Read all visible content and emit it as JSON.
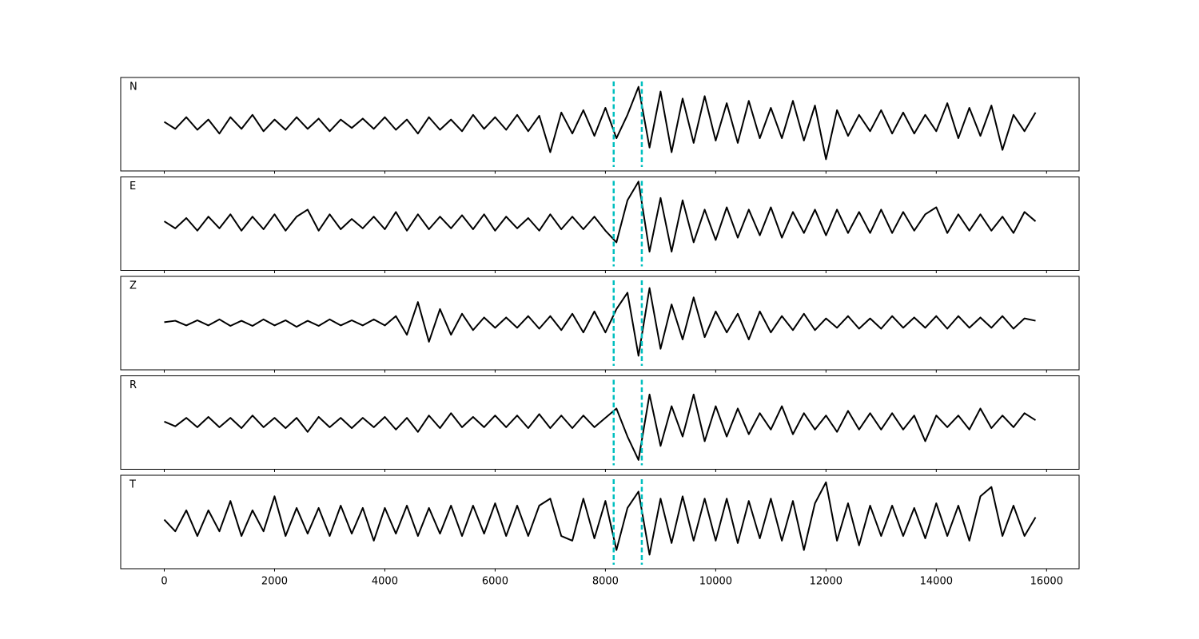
{
  "chart_data": [
    {
      "type": "line",
      "label": "N",
      "color": "#000000",
      "xlim": [
        -790,
        16590
      ],
      "ylim": [
        -1,
        1
      ],
      "xticks": [
        0,
        2000,
        4000,
        6000,
        8000,
        10000,
        12000,
        14000,
        16000
      ],
      "vlines": [
        8150,
        8660
      ],
      "vline_color": "#00bfbf",
      "x": [
        0,
        200,
        400,
        600,
        800,
        1000,
        1200,
        1400,
        1600,
        1800,
        2000,
        2200,
        2400,
        2600,
        2800,
        3000,
        3200,
        3400,
        3600,
        3800,
        4000,
        4200,
        4400,
        4600,
        4800,
        5000,
        5200,
        5400,
        5600,
        5800,
        6000,
        6200,
        6400,
        6600,
        6800,
        7000,
        7200,
        7400,
        7600,
        7800,
        8000,
        8200,
        8400,
        8600,
        8800,
        9000,
        9200,
        9400,
        9600,
        9800,
        10000,
        10200,
        10400,
        10600,
        10800,
        11000,
        11200,
        11400,
        11600,
        11800,
        12000,
        12200,
        12400,
        12600,
        12800,
        13000,
        13200,
        13400,
        13600,
        13800,
        14000,
        14200,
        14400,
        14600,
        14800,
        15000,
        15200,
        15400,
        15600,
        15800
      ],
      "values": [
        0.05,
        -0.1,
        0.15,
        -0.12,
        0.1,
        -0.2,
        0.15,
        -0.1,
        0.2,
        -0.15,
        0.1,
        -0.12,
        0.15,
        -0.1,
        0.12,
        -0.15,
        0.1,
        -0.08,
        0.12,
        -0.1,
        0.15,
        -0.12,
        0.1,
        -0.2,
        0.15,
        -0.12,
        0.1,
        -0.15,
        0.2,
        -0.1,
        0.15,
        -0.12,
        0.2,
        -0.15,
        0.18,
        -0.6,
        0.25,
        -0.2,
        0.3,
        -0.25,
        0.35,
        -0.3,
        0.2,
        0.8,
        -0.5,
        0.7,
        -0.6,
        0.55,
        -0.4,
        0.6,
        -0.35,
        0.45,
        -0.4,
        0.5,
        -0.3,
        0.35,
        -0.3,
        0.5,
        -0.35,
        0.4,
        -0.75,
        0.3,
        -0.25,
        0.2,
        -0.15,
        0.3,
        -0.2,
        0.25,
        -0.2,
        0.2,
        -0.15,
        0.45,
        -0.3,
        0.35,
        -0.25,
        0.4,
        -0.55,
        0.2,
        -0.15,
        0.25
      ]
    },
    {
      "type": "line",
      "label": "E",
      "color": "#000000",
      "xlim": [
        -790,
        16590
      ],
      "ylim": [
        -1,
        1
      ],
      "xticks": [
        0,
        2000,
        4000,
        6000,
        8000,
        10000,
        12000,
        14000,
        16000
      ],
      "vlines": [
        8150,
        8660
      ],
      "vline_color": "#00bfbf",
      "x": [
        0,
        200,
        400,
        600,
        800,
        1000,
        1200,
        1400,
        1600,
        1800,
        2000,
        2200,
        2400,
        2600,
        2800,
        3000,
        3200,
        3400,
        3600,
        3800,
        4000,
        4200,
        4400,
        4600,
        4800,
        5000,
        5200,
        5400,
        5600,
        5800,
        6000,
        6200,
        6400,
        6600,
        6800,
        7000,
        7200,
        7400,
        7600,
        7800,
        8000,
        8200,
        8400,
        8600,
        8800,
        9000,
        9200,
        9400,
        9600,
        9800,
        10000,
        10200,
        10400,
        10600,
        10800,
        11000,
        11200,
        11400,
        11600,
        11800,
        12000,
        12200,
        12400,
        12600,
        12800,
        13000,
        13200,
        13400,
        13600,
        13800,
        14000,
        14200,
        14400,
        14600,
        14800,
        15000,
        15200,
        15400,
        15600,
        15800
      ],
      "values": [
        0.05,
        -0.1,
        0.12,
        -0.15,
        0.15,
        -0.1,
        0.2,
        -0.15,
        0.15,
        -0.12,
        0.2,
        -0.15,
        0.15,
        0.3,
        -0.15,
        0.2,
        -0.12,
        0.1,
        -0.1,
        0.15,
        -0.12,
        0.25,
        -0.15,
        0.2,
        -0.12,
        0.15,
        -0.1,
        0.18,
        -0.12,
        0.2,
        -0.15,
        0.15,
        -0.1,
        0.12,
        -0.15,
        0.2,
        -0.12,
        0.15,
        -0.12,
        0.15,
        -0.15,
        -0.4,
        0.5,
        0.9,
        -0.6,
        0.55,
        -0.6,
        0.5,
        -0.4,
        0.3,
        -0.35,
        0.35,
        -0.3,
        0.3,
        -0.25,
        0.35,
        -0.3,
        0.25,
        -0.2,
        0.3,
        -0.25,
        0.3,
        -0.2,
        0.25,
        -0.2,
        0.3,
        -0.2,
        0.25,
        -0.15,
        0.2,
        0.35,
        -0.2,
        0.2,
        -0.15,
        0.2,
        -0.15,
        0.15,
        -0.2,
        0.25,
        0.05
      ]
    },
    {
      "type": "line",
      "label": "Z",
      "color": "#000000",
      "xlim": [
        -790,
        16590
      ],
      "ylim": [
        -1,
        1
      ],
      "xticks": [
        0,
        2000,
        4000,
        6000,
        8000,
        10000,
        12000,
        14000,
        16000
      ],
      "vlines": [
        8150,
        8660
      ],
      "vline_color": "#00bfbf",
      "x": [
        0,
        200,
        400,
        600,
        800,
        1000,
        1200,
        1400,
        1600,
        1800,
        2000,
        2200,
        2400,
        2600,
        2800,
        3000,
        3200,
        3400,
        3600,
        3800,
        4000,
        4200,
        4400,
        4600,
        4800,
        5000,
        5200,
        5400,
        5600,
        5800,
        6000,
        6200,
        6400,
        6600,
        6800,
        7000,
        7200,
        7400,
        7600,
        7800,
        8000,
        8200,
        8400,
        8600,
        8800,
        9000,
        9200,
        9400,
        9600,
        9800,
        10000,
        10200,
        10400,
        10600,
        10800,
        11000,
        11200,
        11400,
        11600,
        11800,
        12000,
        12200,
        12400,
        12600,
        12800,
        13000,
        13200,
        13400,
        13600,
        13800,
        14000,
        14200,
        14400,
        14600,
        14800,
        15000,
        15200,
        15400,
        15600,
        15800
      ],
      "values": [
        0.02,
        0.05,
        -0.05,
        0.06,
        -0.05,
        0.08,
        -0.06,
        0.05,
        -0.06,
        0.08,
        -0.05,
        0.06,
        -0.08,
        0.05,
        -0.06,
        0.08,
        -0.05,
        0.06,
        -0.05,
        0.08,
        -0.05,
        0.15,
        -0.25,
        0.45,
        -0.4,
        0.3,
        -0.25,
        0.2,
        -0.15,
        0.12,
        -0.1,
        0.12,
        -0.1,
        0.15,
        -0.12,
        0.15,
        -0.15,
        0.2,
        -0.2,
        0.25,
        -0.2,
        0.3,
        0.65,
        -0.7,
        0.75,
        -0.55,
        0.4,
        -0.35,
        0.55,
        -0.3,
        0.25,
        -0.2,
        0.2,
        -0.35,
        0.25,
        -0.2,
        0.15,
        -0.15,
        0.2,
        -0.15,
        0.1,
        -0.1,
        0.15,
        -0.12,
        0.1,
        -0.12,
        0.15,
        -0.1,
        0.12,
        -0.1,
        0.15,
        -0.12,
        0.15,
        -0.1,
        0.12,
        -0.1,
        0.15,
        -0.12,
        0.1,
        0.05
      ]
    },
    {
      "type": "line",
      "label": "R",
      "color": "#000000",
      "xlim": [
        -790,
        16590
      ],
      "ylim": [
        -1,
        1
      ],
      "xticks": [
        0,
        2000,
        4000,
        6000,
        8000,
        10000,
        12000,
        14000,
        16000
      ],
      "vlines": [
        8150,
        8660
      ],
      "vline_color": "#00bfbf",
      "x": [
        0,
        200,
        400,
        600,
        800,
        1000,
        1200,
        1400,
        1600,
        1800,
        2000,
        2200,
        2400,
        2600,
        2800,
        3000,
        3200,
        3400,
        3600,
        3800,
        4000,
        4200,
        4400,
        4600,
        4800,
        5000,
        5200,
        5400,
        5600,
        5800,
        6000,
        6200,
        6400,
        6600,
        6800,
        7000,
        7200,
        7400,
        7600,
        7800,
        8000,
        8200,
        8400,
        8600,
        8800,
        9000,
        9200,
        9400,
        9600,
        9800,
        10000,
        10200,
        10400,
        10600,
        10800,
        11000,
        11200,
        11400,
        11600,
        11800,
        12000,
        12200,
        12400,
        12600,
        12800,
        13000,
        13200,
        13400,
        13600,
        13800,
        14000,
        14200,
        14400,
        14600,
        14800,
        15000,
        15200,
        15400,
        15600,
        15800
      ],
      "values": [
        0.02,
        -0.08,
        0.1,
        -0.1,
        0.12,
        -0.1,
        0.1,
        -0.12,
        0.15,
        -0.1,
        0.1,
        -0.12,
        0.1,
        -0.2,
        0.12,
        -0.1,
        0.1,
        -0.12,
        0.1,
        -0.1,
        0.12,
        -0.15,
        0.1,
        -0.2,
        0.15,
        -0.12,
        0.2,
        -0.1,
        0.12,
        -0.1,
        0.15,
        -0.1,
        0.15,
        -0.12,
        0.18,
        -0.12,
        0.15,
        -0.12,
        0.15,
        -0.1,
        0.1,
        0.3,
        -0.3,
        -0.8,
        0.6,
        -0.5,
        0.35,
        -0.3,
        0.6,
        -0.4,
        0.35,
        -0.3,
        0.3,
        -0.25,
        0.2,
        -0.15,
        0.35,
        -0.25,
        0.2,
        -0.15,
        0.15,
        -0.2,
        0.25,
        -0.15,
        0.2,
        -0.15,
        0.2,
        -0.15,
        0.15,
        -0.4,
        0.15,
        -0.1,
        0.15,
        -0.15,
        0.3,
        -0.12,
        0.15,
        -0.1,
        0.2,
        0.05
      ]
    },
    {
      "type": "line",
      "label": "T",
      "color": "#000000",
      "xlim": [
        -790,
        16590
      ],
      "ylim": [
        -1,
        1
      ],
      "xticks": [
        0,
        2000,
        4000,
        6000,
        8000,
        10000,
        12000,
        14000,
        16000
      ],
      "vlines": [
        8150,
        8660
      ],
      "vline_color": "#00bfbf",
      "x": [
        0,
        200,
        400,
        600,
        800,
        1000,
        1200,
        1400,
        1600,
        1800,
        2000,
        2200,
        2400,
        2600,
        2800,
        3000,
        3200,
        3400,
        3600,
        3800,
        4000,
        4200,
        4400,
        4600,
        4800,
        5000,
        5200,
        5400,
        5600,
        5800,
        6000,
        6200,
        6400,
        6600,
        6800,
        7000,
        7200,
        7400,
        7600,
        7800,
        8000,
        8200,
        8400,
        8600,
        8800,
        9000,
        9200,
        9400,
        9600,
        9800,
        10000,
        10200,
        10400,
        10600,
        10800,
        11000,
        11200,
        11400,
        11600,
        11800,
        12000,
        12200,
        12400,
        12600,
        12800,
        13000,
        13200,
        13400,
        13600,
        13800,
        14000,
        14200,
        14400,
        14600,
        14800,
        15000,
        15200,
        15400,
        15600,
        15800
      ],
      "values": [
        0.05,
        -0.2,
        0.25,
        -0.3,
        0.25,
        -0.2,
        0.45,
        -0.3,
        0.25,
        -0.2,
        0.55,
        -0.3,
        0.3,
        -0.25,
        0.3,
        -0.3,
        0.35,
        -0.25,
        0.3,
        -0.4,
        0.3,
        -0.25,
        0.35,
        -0.3,
        0.3,
        -0.25,
        0.35,
        -0.3,
        0.35,
        -0.25,
        0.4,
        -0.3,
        0.35,
        -0.3,
        0.35,
        0.5,
        -0.3,
        -0.4,
        0.5,
        -0.35,
        0.45,
        -0.6,
        0.3,
        0.65,
        -0.7,
        0.5,
        -0.45,
        0.55,
        -0.4,
        0.5,
        -0.4,
        0.5,
        -0.45,
        0.45,
        -0.35,
        0.5,
        -0.4,
        0.45,
        -0.6,
        0.4,
        0.85,
        -0.4,
        0.4,
        -0.5,
        0.35,
        -0.3,
        0.35,
        -0.3,
        0.3,
        -0.35,
        0.4,
        -0.3,
        0.35,
        -0.4,
        0.55,
        0.75,
        -0.3,
        0.35,
        -0.3,
        0.1
      ]
    }
  ]
}
